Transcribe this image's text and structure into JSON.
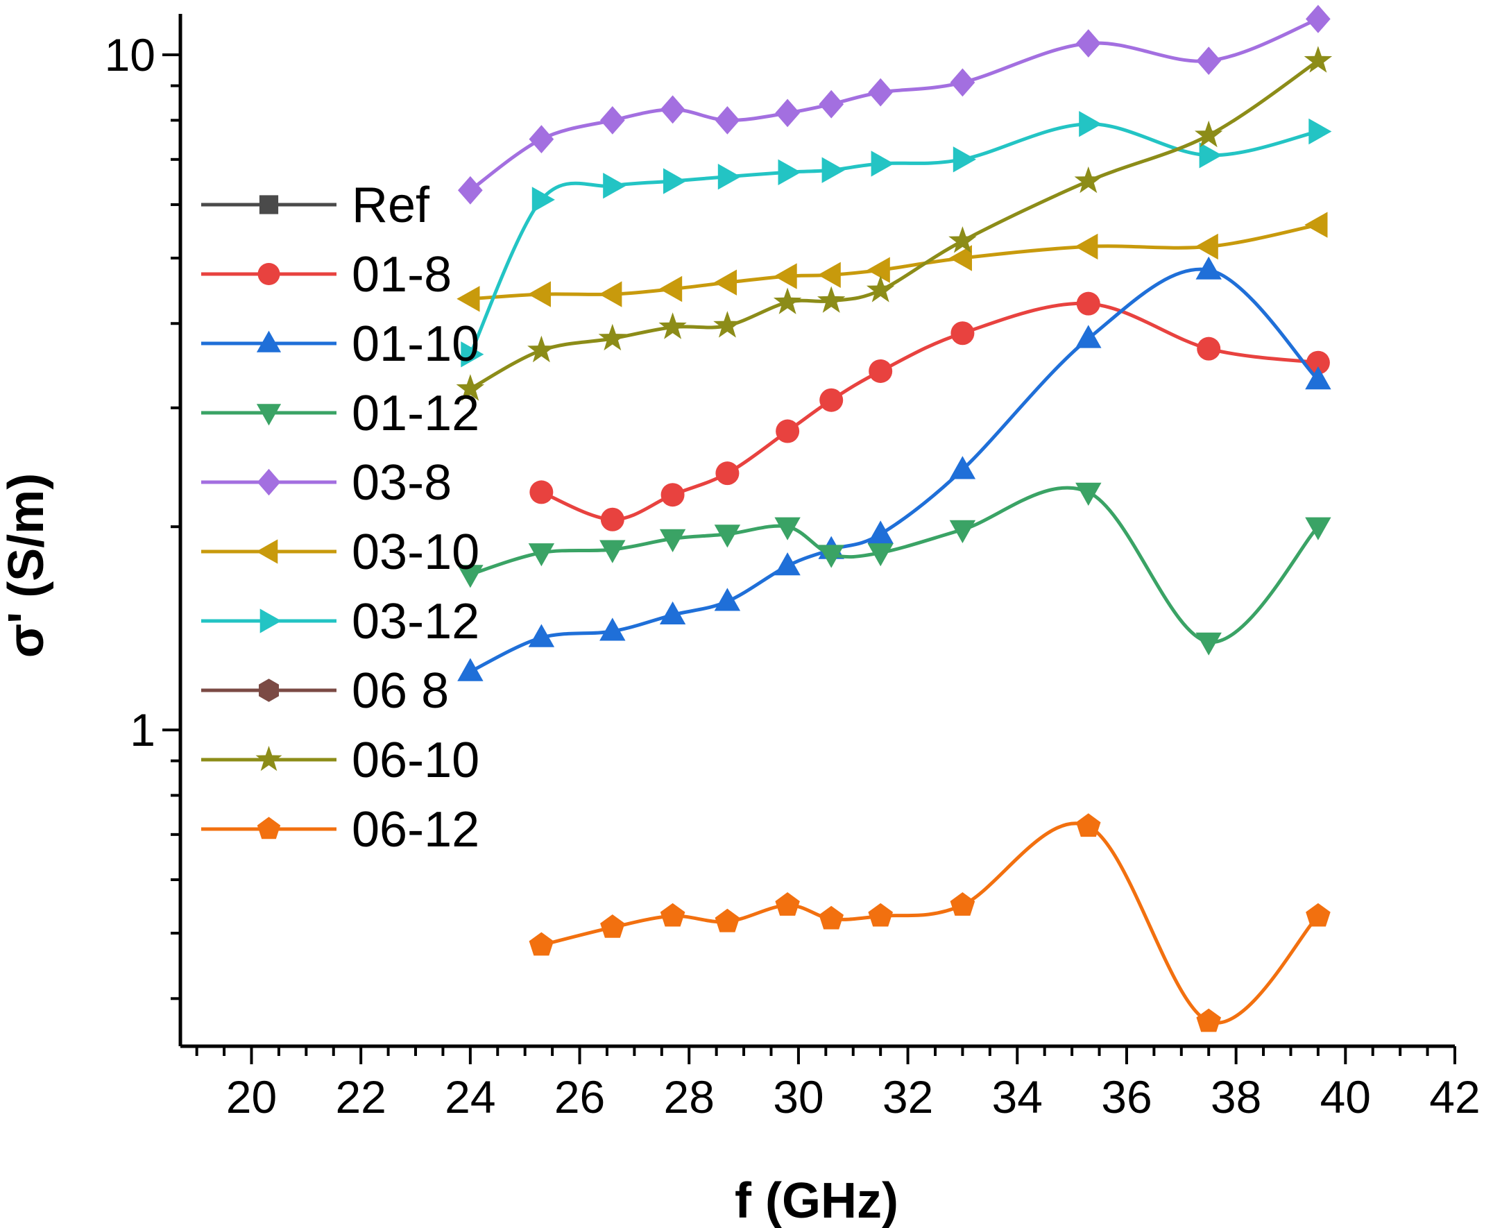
{
  "chart_data": {
    "type": "line",
    "title": "",
    "xlabel": "f (GHz)",
    "ylabel": "σ' (S/m)",
    "xscale": "linear",
    "yscale": "log",
    "xlim": [
      18.7,
      42.0
    ],
    "ylim": [
      0.34,
      11.5
    ],
    "xticks": [
      20,
      22,
      24,
      26,
      28,
      30,
      32,
      34,
      36,
      38,
      40,
      42
    ],
    "yticks": [
      1,
      10
    ],
    "xtick_labels": [
      "20",
      "22",
      "24",
      "26",
      "28",
      "30",
      "32",
      "34",
      "36",
      "38",
      "40",
      "42"
    ],
    "ytick_labels": [
      "1",
      "10"
    ],
    "legend_position": "upper-left",
    "series": [
      {
        "name": "Ref",
        "color": "#4a4a4a",
        "marker": "square",
        "x": [],
        "y": []
      },
      {
        "name": "01-8",
        "color": "#e8423f",
        "marker": "circle",
        "x": [
          25.3,
          26.6,
          27.7,
          28.7,
          29.8,
          30.6,
          31.5,
          33.0,
          35.3,
          37.5,
          39.5
        ],
        "y": [
          2.25,
          2.05,
          2.23,
          2.4,
          2.77,
          3.08,
          3.4,
          3.87,
          4.28,
          3.67,
          3.5
        ]
      },
      {
        "name": "01-10",
        "color": "#1f6fd8",
        "marker": "triangle-up",
        "x": [
          24.0,
          25.3,
          26.6,
          27.7,
          28.7,
          29.8,
          30.6,
          31.5,
          33.0,
          35.3,
          37.5,
          39.5
        ],
        "y": [
          1.22,
          1.37,
          1.4,
          1.48,
          1.55,
          1.75,
          1.85,
          1.95,
          2.43,
          3.8,
          4.8,
          3.3
        ]
      },
      {
        "name": "01-12",
        "color": "#3aa365",
        "marker": "triangle-down",
        "x": [
          24.0,
          25.3,
          26.6,
          27.7,
          28.7,
          29.8,
          30.6,
          31.5,
          33.0,
          35.3,
          37.5,
          39.5
        ],
        "y": [
          1.7,
          1.83,
          1.85,
          1.92,
          1.95,
          2.0,
          1.82,
          1.83,
          1.98,
          2.25,
          1.35,
          2.0
        ]
      },
      {
        "name": "03-8",
        "color": "#a36fe0",
        "marker": "diamond",
        "x": [
          24.0,
          25.3,
          26.6,
          27.7,
          28.7,
          29.8,
          30.6,
          31.5,
          33.0,
          35.3,
          37.5,
          39.5
        ],
        "y": [
          6.3,
          7.5,
          8.0,
          8.3,
          8.0,
          8.2,
          8.45,
          8.8,
          9.1,
          10.4,
          9.8,
          11.3
        ]
      },
      {
        "name": "03-10",
        "color": "#c89a0c",
        "marker": "triangle-left",
        "x": [
          24.0,
          25.3,
          26.6,
          27.7,
          28.7,
          29.8,
          30.6,
          31.5,
          33.0,
          35.3,
          37.5,
          39.5
        ],
        "y": [
          4.35,
          4.42,
          4.42,
          4.5,
          4.6,
          4.7,
          4.72,
          4.8,
          5.0,
          5.2,
          5.2,
          5.6
        ]
      },
      {
        "name": "03-12",
        "color": "#23c4c4",
        "marker": "triangle-right",
        "x": [
          24.0,
          25.3,
          26.6,
          27.7,
          28.7,
          29.8,
          30.6,
          31.5,
          33.0,
          35.3,
          37.5,
          39.5
        ],
        "y": [
          3.6,
          6.1,
          6.4,
          6.5,
          6.6,
          6.7,
          6.75,
          6.9,
          7.0,
          7.9,
          7.1,
          7.7
        ]
      },
      {
        "name": "06 8",
        "color": "#7b4a44",
        "marker": "hexagon",
        "x": [],
        "y": []
      },
      {
        "name": "06-10",
        "color": "#8c8c18",
        "marker": "star",
        "x": [
          24.0,
          25.3,
          26.6,
          27.7,
          28.7,
          29.8,
          30.6,
          31.5,
          33.0,
          35.3,
          37.5,
          39.5
        ],
        "y": [
          3.2,
          3.65,
          3.8,
          3.95,
          3.97,
          4.3,
          4.32,
          4.48,
          5.3,
          6.5,
          7.6,
          9.8
        ]
      },
      {
        "name": "06-12",
        "color": "#f2700f",
        "marker": "pentagon",
        "x": [
          25.3,
          26.6,
          27.7,
          28.7,
          29.8,
          30.6,
          31.5,
          33.0,
          35.3,
          37.5,
          39.5
        ],
        "y": [
          0.48,
          0.51,
          0.53,
          0.52,
          0.55,
          0.525,
          0.53,
          0.55,
          0.72,
          0.37,
          0.53
        ]
      }
    ]
  }
}
